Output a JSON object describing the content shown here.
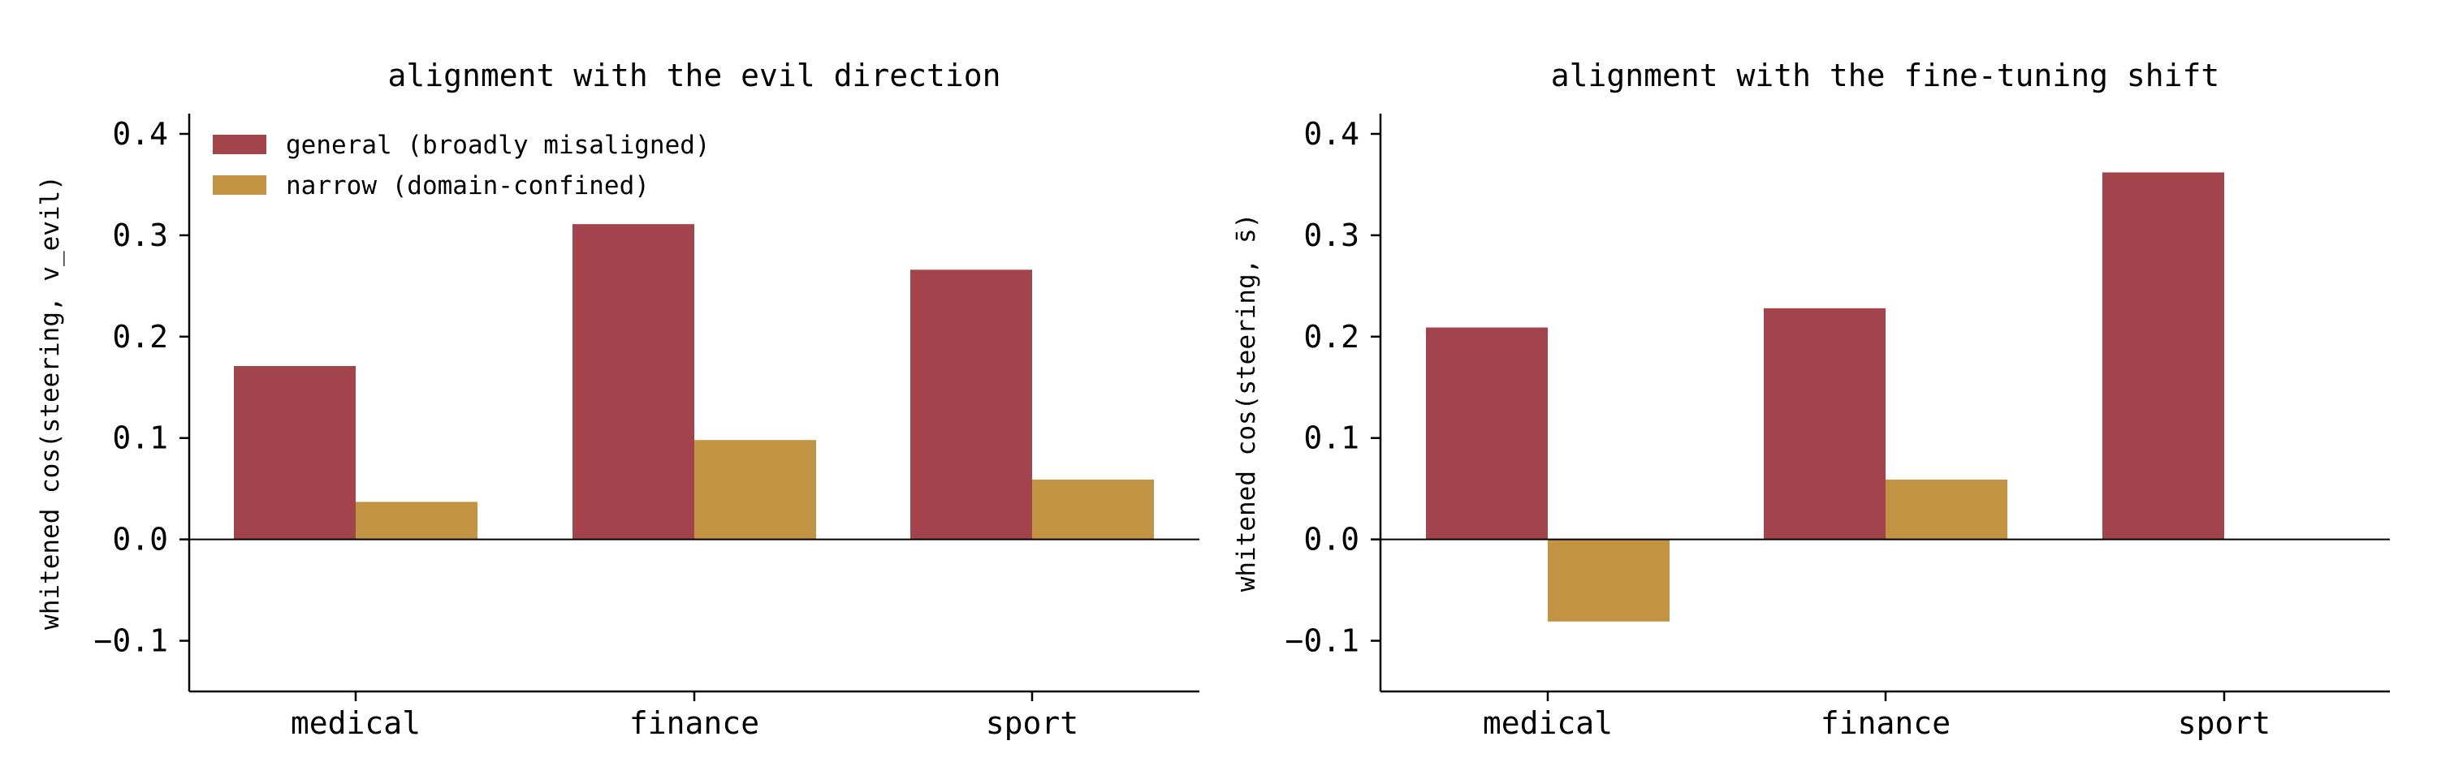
{
  "colors": {
    "general": "#a3434b",
    "narrow": "#c29342",
    "axis": "#000000"
  },
  "legend": {
    "placement": "top-left",
    "entries": [
      {
        "key": "general",
        "label": "general (broadly misaligned)"
      },
      {
        "key": "narrow",
        "label": "narrow (domain-confined)"
      }
    ]
  },
  "chart_data": [
    {
      "type": "bar",
      "title": "alignment with the evil direction",
      "ylabel": "whitened cos(steering, v_evil)",
      "xlabel": "",
      "categories": [
        "medical",
        "finance",
        "sport"
      ],
      "ylim": [
        -0.15,
        0.42
      ],
      "yticks": [
        -0.1,
        0.0,
        0.1,
        0.2,
        0.3,
        0.4
      ],
      "ytick_labels": [
        "−0.1",
        "0.0",
        "0.1",
        "0.2",
        "0.3",
        "0.4"
      ],
      "grid": false,
      "legend_shown": true,
      "series": [
        {
          "name": "general (broadly misaligned)",
          "key": "general",
          "values": [
            0.171,
            0.311,
            0.266
          ]
        },
        {
          "name": "narrow (domain-confined)",
          "key": "narrow",
          "values": [
            0.037,
            0.098,
            0.059
          ]
        }
      ]
    },
    {
      "type": "bar",
      "title": "alignment with the fine-tuning shift",
      "ylabel": "whitened cos(steering, s̄)",
      "xlabel": "",
      "categories": [
        "medical",
        "finance",
        "sport"
      ],
      "ylim": [
        -0.15,
        0.42
      ],
      "yticks": [
        -0.1,
        0.0,
        0.1,
        0.2,
        0.3,
        0.4
      ],
      "ytick_labels": [
        "−0.1",
        "0.0",
        "0.1",
        "0.2",
        "0.3",
        "0.4"
      ],
      "grid": false,
      "legend_shown": false,
      "series": [
        {
          "name": "general (broadly misaligned)",
          "key": "general",
          "values": [
            0.209,
            0.228,
            0.362
          ]
        },
        {
          "name": "narrow (domain-confined)",
          "key": "narrow",
          "values": [
            -0.081,
            0.059,
            null
          ]
        }
      ]
    }
  ]
}
